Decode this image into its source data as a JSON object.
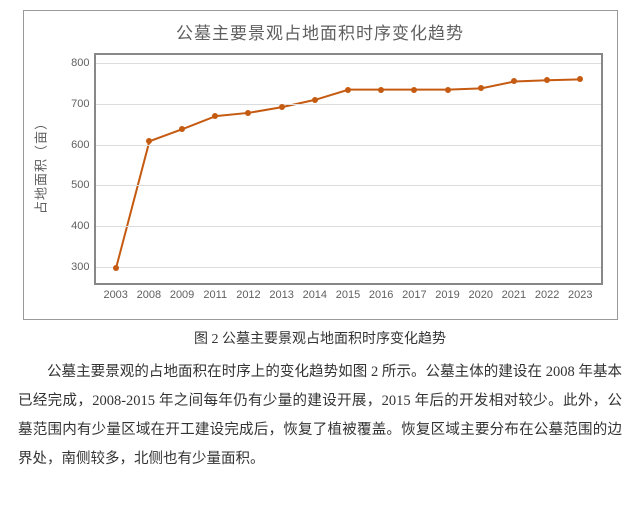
{
  "chart": {
    "type": "line",
    "title": "公墓主要景观占地面积时序变化趋势",
    "y_axis_title": "占地面积（亩）",
    "line_color": "#c55a11",
    "marker_color": "#c55a11",
    "grid_color": "#dcdcdc",
    "border_color": "#888888",
    "title_color": "#606060",
    "tick_color": "#606060",
    "line_width": 2,
    "marker_size": 6,
    "ylim": [
      260,
      820
    ],
    "y_ticks": [
      300,
      400,
      500,
      600,
      700,
      800
    ],
    "x_labels": [
      "2003",
      "2008",
      "2009",
      "2011",
      "2012",
      "2013",
      "2014",
      "2015",
      "2016",
      "2017",
      "2019",
      "2020",
      "2021",
      "2022",
      "2023"
    ],
    "values": [
      298,
      608,
      638,
      670,
      678,
      692,
      710,
      735,
      735,
      735,
      735,
      738,
      755,
      758,
      760
    ]
  },
  "caption": "图 2 公墓主要景观占地面积时序变化趋势",
  "paragraph": "公墓主要景观的占地面积在时序上的变化趋势如图 2 所示。公墓主体的建设在 2008 年基本已经完成，2008-2015 年之间每年仍有少量的建设开展，2015 年后的开发相对较少。此外，公墓范围内有少量区域在开工建设完成后，恢复了植被覆盖。恢复区域主要分布在公墓范围的边界处，南侧较多，北侧也有少量面积。"
}
